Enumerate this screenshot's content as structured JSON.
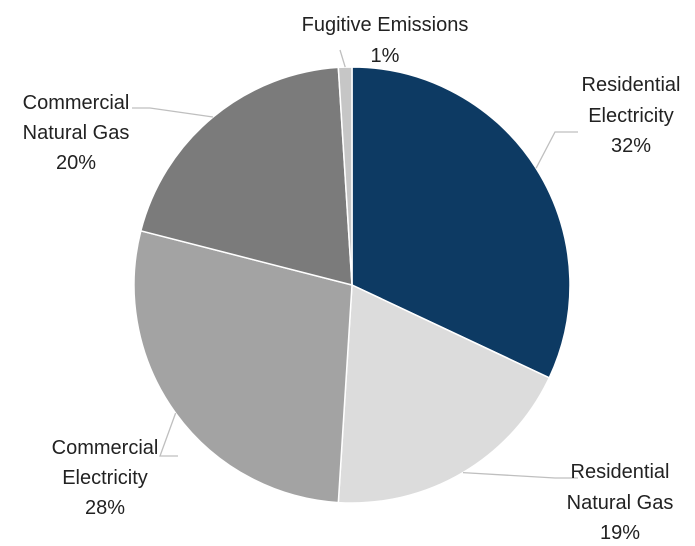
{
  "chart_data": {
    "type": "pie",
    "title": "",
    "slices": [
      {
        "label": "Residential Electricity",
        "line1": "Residential",
        "line2": "Electricity",
        "pct_text": "32%",
        "value": 32,
        "color": "#0d3a63"
      },
      {
        "label": "Residential Natural Gas",
        "line1": "Residential",
        "line2": "Natural Gas",
        "pct_text": "19%",
        "value": 19,
        "color": "#dcdcdc"
      },
      {
        "label": "Commercial Electricity",
        "line1": "Commercial",
        "line2": "Electricity",
        "pct_text": "28%",
        "value": 28,
        "color": "#a3a3a3"
      },
      {
        "label": "Commercial Natural Gas",
        "line1": "Commercial",
        "line2": "Natural Gas",
        "pct_text": "20%",
        "value": 20,
        "color": "#7b7b7b"
      },
      {
        "label": "Fugitive Emissions",
        "line1": "Fugitive Emissions",
        "line2": "",
        "pct_text": "1%",
        "value": 1,
        "color": "#c6c6c6"
      }
    ],
    "start_angle_deg": 0,
    "direction": "clockwise",
    "legend": "none",
    "data_labels": "outside-with-leader-lines"
  }
}
